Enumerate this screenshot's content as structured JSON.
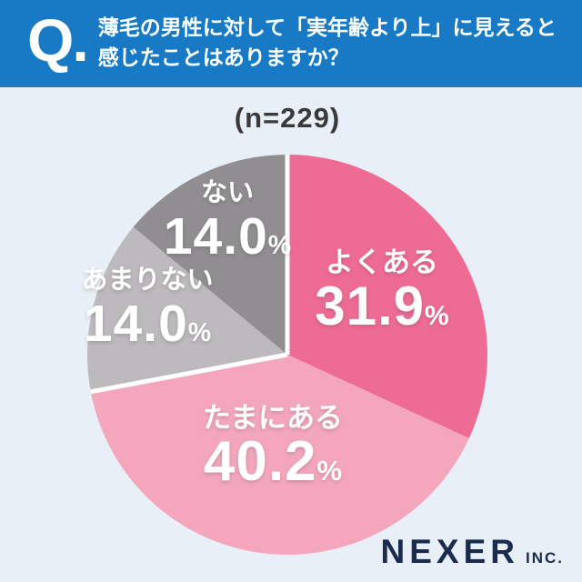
{
  "header": {
    "q_label": "Q.",
    "question_line1": "薄毛の男性に対して「実年齢より上」に見えると",
    "question_line2": "感じたことはありますか？"
  },
  "n_label": "(n=229)",
  "chart_data": {
    "type": "pie",
    "title": "(n=229)",
    "sample_size": 229,
    "start_angle_deg": 0,
    "direction": "clockwise",
    "legend_position": "inside-slices",
    "divider_color": "#ffffff",
    "slices": [
      {
        "key": "yoku-aru",
        "label": "よくある",
        "value": 31.9,
        "value_label": "31.9",
        "unit": "%",
        "color": "#ee6c93",
        "divider_before": true
      },
      {
        "key": "tamani-aru",
        "label": "たまにある",
        "value": 40.2,
        "value_label": "40.2",
        "unit": "%",
        "color": "#f4a7bc",
        "divider_before": false
      },
      {
        "key": "amari-nai",
        "label": "あまりない",
        "value": 14.0,
        "value_label": "14.0",
        "unit": "%",
        "color": "#bdbabd",
        "divider_before": true
      },
      {
        "key": "nai",
        "label": "ない",
        "value": 14.0,
        "value_label": "14.0",
        "unit": "%",
        "color": "#908e90",
        "divider_before": false
      }
    ]
  },
  "footer": {
    "brand": "NEXER",
    "brand_suffix": "INC."
  },
  "theme": {
    "header_blue": "#187ac4",
    "background": "#e9eff7",
    "brand_navy": "#1b2b4d",
    "n_label_color": "#3a3a3a",
    "slice_text_color": "#ffffff"
  }
}
